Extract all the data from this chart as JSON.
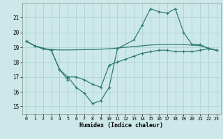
{
  "xlabel": "Humidex (Indice chaleur)",
  "xlim": [
    -0.5,
    23.5
  ],
  "ylim": [
    14.5,
    22.0
  ],
  "xticks": [
    0,
    1,
    2,
    3,
    4,
    5,
    6,
    7,
    8,
    9,
    10,
    11,
    12,
    13,
    14,
    15,
    16,
    17,
    18,
    19,
    20,
    21,
    22,
    23
  ],
  "yticks": [
    15,
    16,
    17,
    18,
    19,
    20,
    21
  ],
  "background_color": "#cde8e8",
  "grid_color": "#aacfcf",
  "line_color": "#2e7d70",
  "series_flat": {
    "x": [
      0,
      1,
      2,
      3,
      4,
      5,
      6,
      7,
      8,
      9,
      10,
      11,
      12,
      13,
      14,
      15,
      16,
      17,
      18,
      19,
      20,
      21,
      22,
      23
    ],
    "y": [
      19.4,
      19.1,
      18.9,
      18.85,
      18.82,
      18.82,
      18.83,
      18.84,
      18.85,
      18.87,
      18.9,
      18.95,
      19.0,
      19.05,
      19.1,
      19.15,
      19.18,
      19.2,
      19.2,
      19.18,
      19.15,
      19.1,
      18.95,
      18.8
    ]
  },
  "series_upper": {
    "x": [
      0,
      1,
      3,
      4,
      5,
      5,
      6,
      7,
      8,
      9,
      10,
      11,
      13,
      14,
      15,
      16,
      17,
      18,
      19,
      20,
      21,
      22,
      23
    ],
    "y": [
      19.4,
      19.1,
      18.8,
      17.5,
      16.8,
      17.0,
      16.3,
      15.9,
      15.2,
      15.4,
      16.3,
      18.9,
      19.5,
      20.5,
      21.6,
      21.4,
      21.3,
      21.6,
      20.0,
      19.2,
      19.2,
      18.9,
      18.8
    ]
  },
  "series_lower": {
    "x": [
      0,
      1,
      2,
      3,
      4,
      5,
      6,
      7,
      8,
      9,
      10,
      11,
      12,
      13,
      14,
      15,
      16,
      17,
      18,
      19,
      20,
      21,
      22,
      23
    ],
    "y": [
      19.4,
      19.1,
      18.9,
      18.8,
      17.5,
      17.0,
      17.0,
      16.8,
      16.5,
      16.3,
      17.8,
      18.0,
      18.2,
      18.4,
      18.6,
      18.7,
      18.8,
      18.8,
      18.7,
      18.7,
      18.7,
      18.8,
      18.9,
      18.8
    ]
  }
}
